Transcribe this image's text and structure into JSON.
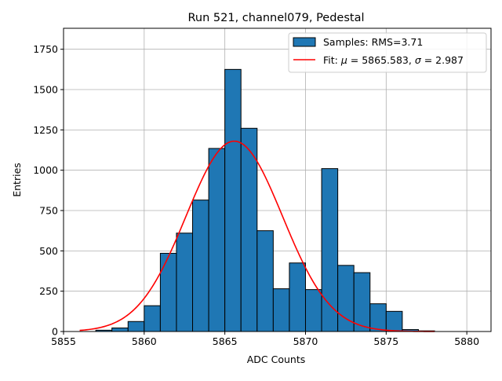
{
  "chart_data": {
    "type": "bar",
    "title": "Run 521, channel079, Pedestal",
    "xlabel": "ADC Counts",
    "ylabel": "Entries",
    "xlim": [
      5855,
      5881.5
    ],
    "ylim": [
      0,
      1880
    ],
    "x_ticks": [
      5855,
      5860,
      5865,
      5870,
      5875,
      5880
    ],
    "y_ticks": [
      0,
      250,
      500,
      750,
      1000,
      1250,
      1500,
      1750
    ],
    "grid": true,
    "legend_position": "top-right",
    "bar_color": "#1f77b4",
    "fit_color": "#ff0000",
    "bins": [
      {
        "left": 5857,
        "right": 5858,
        "count": 8
      },
      {
        "left": 5858,
        "right": 5859,
        "count": 22
      },
      {
        "left": 5859,
        "right": 5860,
        "count": 62
      },
      {
        "left": 5860,
        "right": 5861,
        "count": 160
      },
      {
        "left": 5861,
        "right": 5862,
        "count": 485
      },
      {
        "left": 5862,
        "right": 5863,
        "count": 610
      },
      {
        "left": 5863,
        "right": 5864,
        "count": 815
      },
      {
        "left": 5864,
        "right": 5865,
        "count": 1135
      },
      {
        "left": 5865,
        "right": 5866,
        "count": 1625
      },
      {
        "left": 5866,
        "right": 5867,
        "count": 1260
      },
      {
        "left": 5867,
        "right": 5868,
        "count": 625
      },
      {
        "left": 5868,
        "right": 5869,
        "count": 265
      },
      {
        "left": 5869,
        "right": 5870,
        "count": 425
      },
      {
        "left": 5870,
        "right": 5871,
        "count": 260
      },
      {
        "left": 5871,
        "right": 5872,
        "count": 1010
      },
      {
        "left": 5872,
        "right": 5873,
        "count": 410
      },
      {
        "left": 5873,
        "right": 5874,
        "count": 365
      },
      {
        "left": 5874,
        "right": 5875,
        "count": 172
      },
      {
        "left": 5875,
        "right": 5876,
        "count": 125
      },
      {
        "left": 5876,
        "right": 5877,
        "count": 12
      },
      {
        "left": 5877,
        "right": 5878,
        "count": 4
      }
    ],
    "fit": {
      "mu": 5865.583,
      "sigma": 2.987,
      "amplitude": 1180,
      "x_range": [
        5856,
        5878
      ]
    },
    "legend": [
      {
        "kind": "patch",
        "label": "Samples: RMS=3.71"
      },
      {
        "kind": "line",
        "label_prefix": "Fit: ",
        "mu_symbol": "μ",
        "mu_text": " = 5865.583, ",
        "sigma_symbol": "σ",
        "sigma_text": " = 2.987"
      }
    ]
  }
}
